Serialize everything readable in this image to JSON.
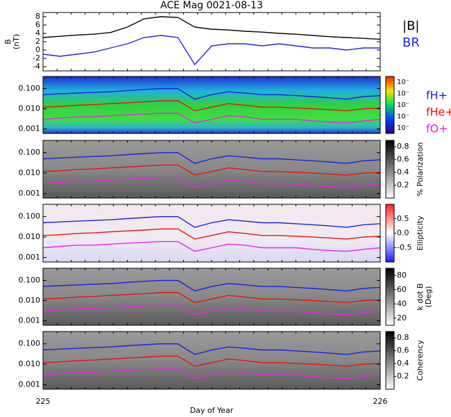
{
  "chart_data": [
    {
      "type": "line",
      "title": "ACE Mag 0021-08-13",
      "ylabel": [
        "B",
        "(nT)"
      ],
      "x": [
        225,
        225.05,
        225.1,
        225.15,
        225.2,
        225.25,
        225.3,
        225.35,
        225.4,
        225.45,
        225.5,
        225.55,
        225.6,
        225.65,
        225.7,
        225.75,
        225.8,
        225.85,
        225.9,
        225.95,
        226
      ],
      "ylim": [
        -5,
        9
      ],
      "yticks": [
        -4,
        -2,
        0,
        2,
        4,
        6,
        8
      ],
      "series": [
        {
          "name": "|B|",
          "color": "#000000",
          "values": [
            3.0,
            3.3,
            3.6,
            3.8,
            4.2,
            5.5,
            7.5,
            8.0,
            7.8,
            5.5,
            5.0,
            4.8,
            4.5,
            4.3,
            4.0,
            3.8,
            3.5,
            3.2,
            3.0,
            2.8,
            2.6
          ]
        },
        {
          "name": "BR",
          "color": "#2222e6",
          "values": [
            -1.0,
            -1.5,
            -1.0,
            -0.5,
            0.5,
            1.5,
            3.0,
            3.5,
            3.0,
            -3.5,
            1.0,
            1.5,
            1.5,
            1.0,
            1.5,
            1.0,
            0.5,
            0.5,
            0.0,
            0.5,
            0.5
          ]
        }
      ]
    },
    {
      "type": "spectrogram",
      "log": true,
      "ylim": [
        0.0006,
        0.4
      ],
      "yticks": [
        {
          "value": 0.001,
          "label": "0.001"
        },
        {
          "value": 0.01,
          "label": "0.010"
        },
        {
          "value": 0.1,
          "label": "0.100"
        }
      ],
      "colorbar_labels": [
        "10⁻",
        "10⁻",
        "10⁻",
        "10⁻",
        "10⁻"
      ],
      "series": [
        {
          "name": "fH+",
          "color": "#1f1fe6",
          "values": [
            0.05,
            0.055,
            0.06,
            0.065,
            0.07,
            0.08,
            0.09,
            0.1,
            0.1,
            0.03,
            0.05,
            0.07,
            0.06,
            0.05,
            0.05,
            0.045,
            0.04,
            0.035,
            0.03,
            0.04,
            0.045
          ]
        },
        {
          "name": "fHe+",
          "color": "#ee1111",
          "values": [
            0.012,
            0.013,
            0.015,
            0.016,
            0.018,
            0.02,
            0.022,
            0.025,
            0.025,
            0.008,
            0.012,
            0.018,
            0.015,
            0.012,
            0.012,
            0.011,
            0.01,
            0.009,
            0.008,
            0.01,
            0.011
          ]
        },
        {
          "name": "fO+",
          "color": "#ee22ee",
          "values": [
            0.003,
            0.0035,
            0.004,
            0.004,
            0.0045,
            0.005,
            0.0055,
            0.006,
            0.006,
            0.002,
            0.003,
            0.0045,
            0.004,
            0.003,
            0.003,
            0.003,
            0.0025,
            0.0022,
            0.002,
            0.0025,
            0.003
          ]
        }
      ]
    },
    {
      "type": "spectrogram",
      "log": true,
      "ylim": [
        0.0006,
        0.4
      ],
      "yticks": [
        {
          "value": 0.001,
          "label": "0.001"
        },
        {
          "value": 0.01,
          "label": "0.010"
        },
        {
          "value": 0.1,
          "label": "0.100"
        }
      ],
      "clabel": [
        "% Polarization"
      ],
      "clim": [
        0,
        0.9
      ],
      "cticks": [
        0.2,
        0.4,
        0.6,
        0.8
      ]
    },
    {
      "type": "spectrogram",
      "log": true,
      "ylim": [
        0.0006,
        0.4
      ],
      "yticks": [
        {
          "value": 0.001,
          "label": "0.001"
        },
        {
          "value": 0.01,
          "label": "0.010"
        },
        {
          "value": 0.1,
          "label": "0.100"
        }
      ],
      "clabel": [
        "Ellipticity"
      ],
      "clim": [
        -1,
        1
      ],
      "cticks": [
        -0.5,
        {
          "value": 0,
          "label": "0.0"
        },
        0.5
      ]
    },
    {
      "type": "spectrogram",
      "log": true,
      "ylim": [
        0.0006,
        0.4
      ],
      "yticks": [
        {
          "value": 0.001,
          "label": "0.001"
        },
        {
          "value": 0.01,
          "label": "0.010"
        },
        {
          "value": 0.1,
          "label": "0.100"
        }
      ],
      "clabel": [
        "k dot B",
        "(Deg)"
      ],
      "clim": [
        10,
        90
      ],
      "cticks": [
        20,
        40,
        60,
        80
      ]
    },
    {
      "type": "spectrogram",
      "log": true,
      "ylim": [
        0.0006,
        0.4
      ],
      "yticks": [
        {
          "value": 0.001,
          "label": "0.001"
        },
        {
          "value": 0.01,
          "label": "0.010"
        },
        {
          "value": 0.1,
          "label": "0.100"
        }
      ],
      "clabel": [
        "Coherency"
      ],
      "clim": [
        0,
        0.9
      ],
      "cticks": [
        0.2,
        0.4,
        0.6,
        0.8
      ],
      "xlabel": "Day of Year",
      "xlim": [
        225,
        226
      ],
      "xticks": [
        225,
        226
      ]
    }
  ]
}
